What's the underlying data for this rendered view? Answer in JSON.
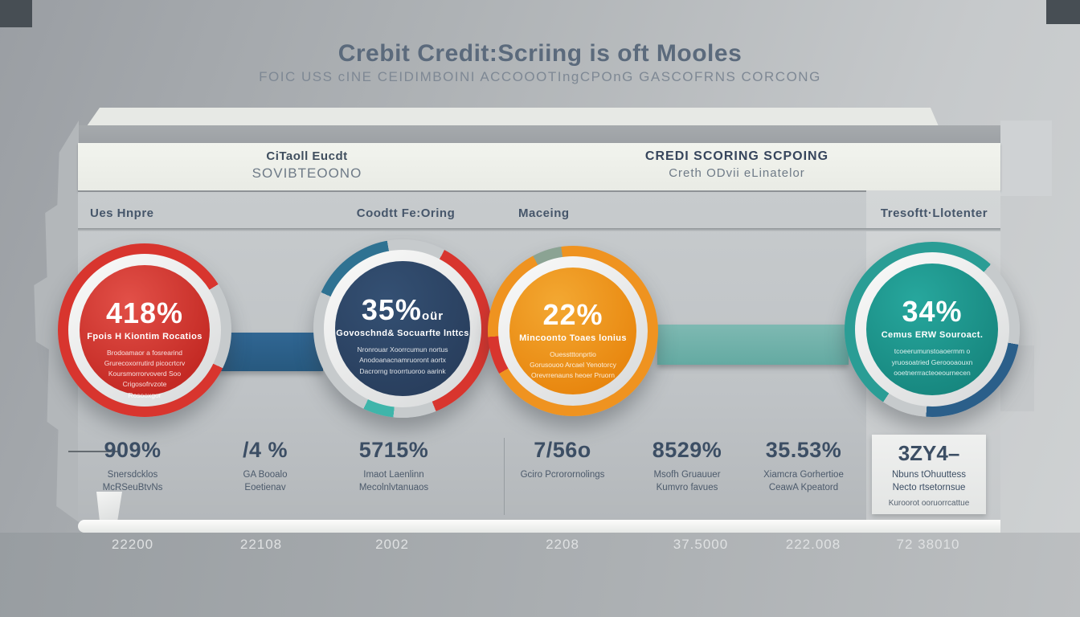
{
  "title": "Crebit Credit:Scriing is oft Mooles",
  "subtitle": "FOIC USS cINE CEIDIMBOINI ACCOOOTIngCPOnG GASCOFRNS CORCONG",
  "header": {
    "left": {
      "line1": "CiTaoll Eucdt",
      "line2": "SOVIBTEOONO"
    },
    "right": {
      "line1": "CREDI SCORING SCPOING",
      "line2": "Creth ODvii eLinatelor"
    }
  },
  "columns": [
    "Ues Hnpre",
    "Coodtt Fe:Oring",
    "Maceing",
    "Tresoftt·Llotenter"
  ],
  "circles": [
    {
      "value": "418%",
      "suffix": "",
      "heading": "Fpois H Kiontim Rocatios",
      "body": "Brodoamaor a fosrearind\nGrurecoxorrutird picocrtcrv\nKoursmorrorvoverd Soo\nCrigosofrvzote\nRosooxgor",
      "color": "#d8352e"
    },
    {
      "value": "35%",
      "suffix": "oür",
      "heading": "Govoschnd& Socuarfte lnttcs",
      "body": "Nronrouar Xoorrcumun nortus\nAnodoanacnamruoront aortx\nDacrorng troorrtuoroo aarink",
      "color": "#2d4767"
    },
    {
      "value": "22%",
      "suffix": "",
      "heading": "Mincoonto Toaes lonius",
      "body": "Ouesstttonprtio\nGorusouoo Arcael Yenotorcy\nOrevrrenauns heoer Pruorn",
      "color": "#ef9320"
    },
    {
      "value": "34%",
      "suffix": "",
      "heading": "Cemus ERW Souroact.",
      "body": "tcoeerumunstoaoermm o\nyruosoatried Geroooaouxn\nooetnerrracteoeournecen",
      "color": "#209a92"
    }
  ],
  "stats": [
    {
      "value": "909%",
      "label": "Snersdcklos\nMcRSeuBtvNs"
    },
    {
      "value": "/4 %",
      "label": "GA Booalo\nEoetienav"
    },
    {
      "value": "5715%",
      "label": "Imaot Laenlinn\nMecolnlvtanuaos"
    },
    {
      "value": "7/56o",
      "label": "Gciro Pcrorornolings"
    },
    {
      "value": "8529%",
      "label": "Msofh Gruauuer\nKumvro favues"
    },
    {
      "value": "35.53%",
      "label": "Xiamcra Gorhertioe\nCeawA Kpeatord"
    },
    {
      "value": "3ZY4–",
      "label": "Nbuns tOhuuttess\nNecto rtsetornsue",
      "note": "Kuroorot ooruorrcattue"
    }
  ],
  "years": [
    "22200",
    "22108",
    "2002",
    "2208",
    "37.5000",
    "222.008",
    "72 38010"
  ],
  "colors": {
    "red": "#d8352e",
    "navy": "#2d4767",
    "orange": "#ef9320",
    "teal": "#209a92",
    "connector_blue": "#2e6590",
    "connector_teal": "#74b4ad",
    "stat_text": "#3c4e64",
    "background": "#aeb2b5"
  }
}
